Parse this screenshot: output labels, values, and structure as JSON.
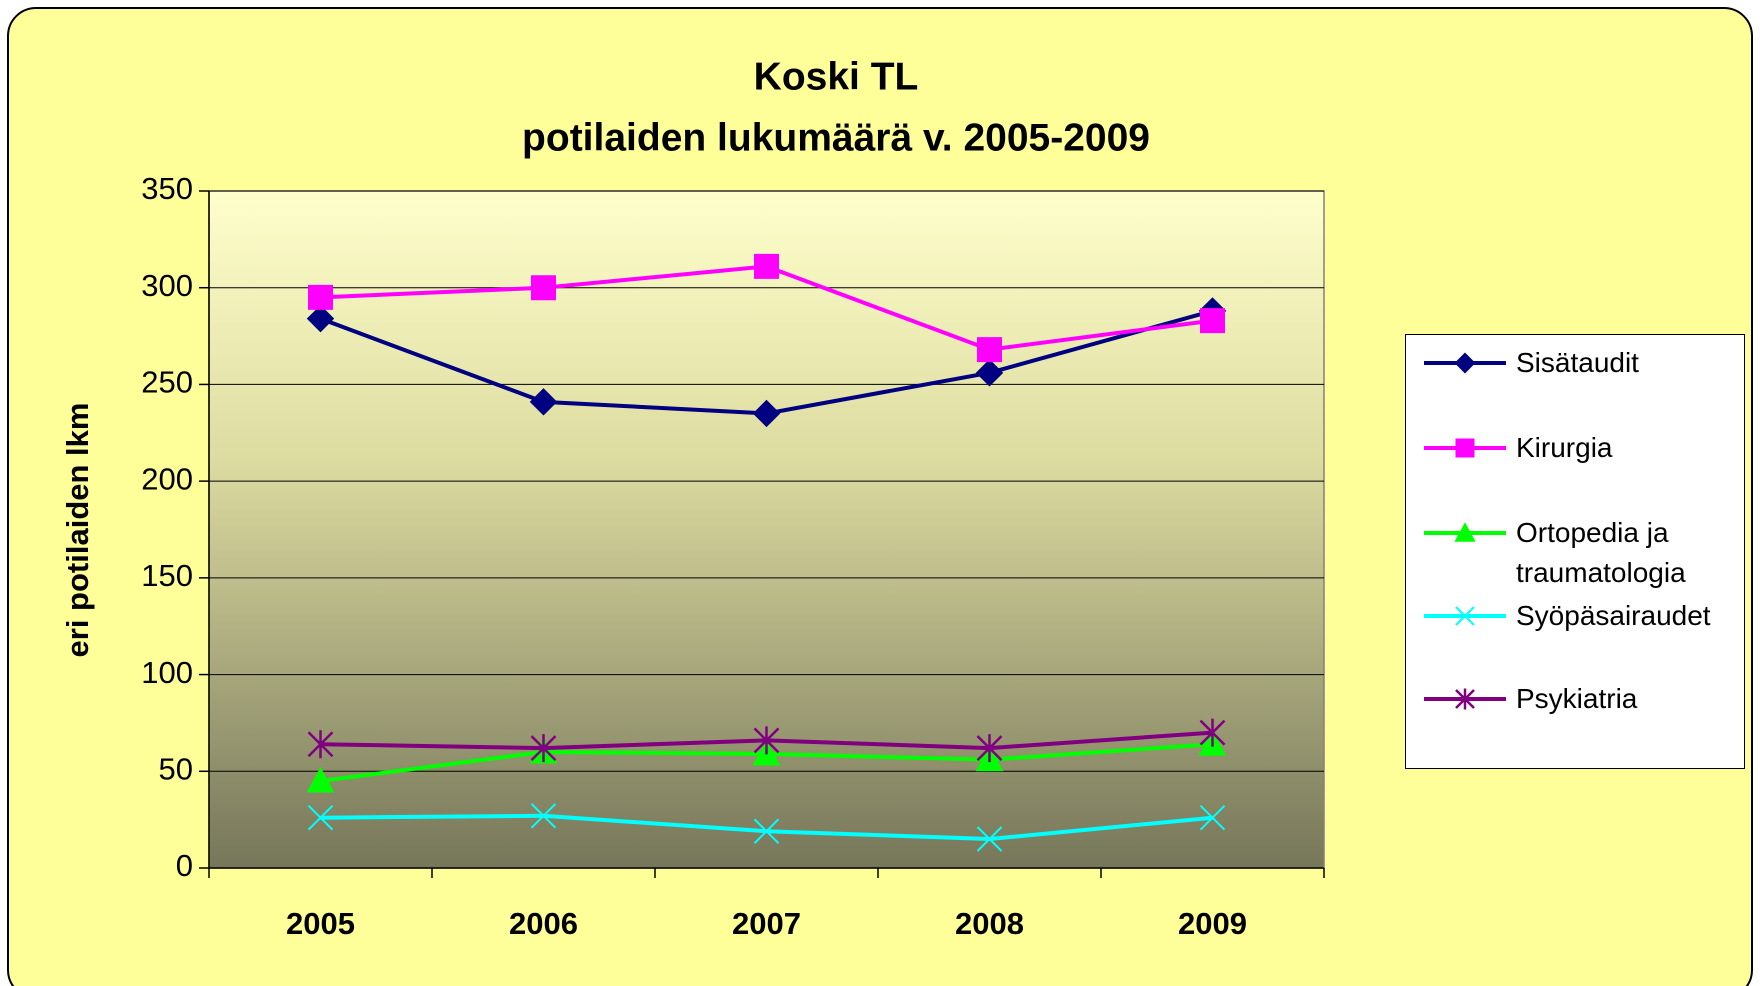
{
  "chart_data": {
    "type": "line",
    "title": [
      "Koski TL",
      "potilaiden lukumäärä v. 2005-2009"
    ],
    "y_label": "eri potilaiden lkm",
    "categories": [
      "2005",
      "2006",
      "2007",
      "2008",
      "2009"
    ],
    "series": [
      {
        "name": "Sisätaudit",
        "color": "#000080",
        "marker": "diamond",
        "values": [
          284,
          241,
          235,
          256,
          288
        ]
      },
      {
        "name": "Kirurgia",
        "color": "#ff00ff",
        "marker": "square",
        "values": [
          295,
          300,
          311,
          268,
          283
        ]
      },
      {
        "name": "Ortopedia ja traumatologia",
        "color": "#00ff00",
        "marker": "triangle",
        "values": [
          45,
          60,
          59,
          56,
          64
        ]
      },
      {
        "name": "Syöpäsairaudet",
        "color": "#00ffff",
        "marker": "x",
        "values": [
          26,
          27,
          19,
          15,
          26
        ]
      },
      {
        "name": "Psykiatria",
        "color": "#800080",
        "marker": "star",
        "values": [
          64,
          62,
          66,
          62,
          70
        ]
      }
    ],
    "ylim": [
      0,
      350
    ],
    "yticks": [
      0,
      50,
      100,
      150,
      200,
      250,
      300,
      350
    ],
    "grid": true,
    "legend": "right"
  }
}
